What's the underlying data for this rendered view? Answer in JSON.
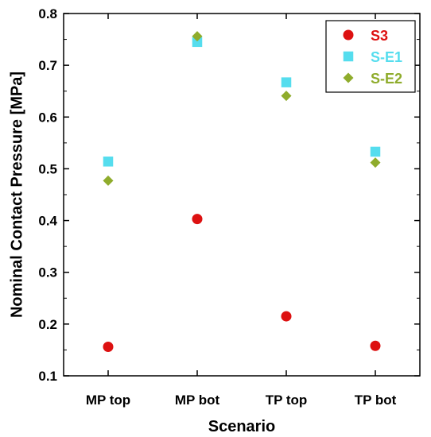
{
  "chart_data": {
    "type": "scatter",
    "title": "",
    "xlabel": "Scenario",
    "ylabel": "Nominal Contact Pressure [MPa]",
    "categories": [
      "MP top",
      "MP bot",
      "TP top",
      "TP bot"
    ],
    "ylim": [
      0.1,
      0.8
    ],
    "yticks": [
      "0.1",
      "0.2",
      "0.3",
      "0.4",
      "0.5",
      "0.6",
      "0.7",
      "0.8"
    ],
    "grid": false,
    "legend_position": "top-right",
    "series": [
      {
        "name": "S3",
        "marker": "circle",
        "color": "#dd1111",
        "values": [
          0.156,
          0.403,
          0.215,
          0.158
        ]
      },
      {
        "name": "S-E1",
        "marker": "square",
        "color": "#55ddee",
        "values": [
          0.514,
          0.745,
          0.667,
          0.533
        ]
      },
      {
        "name": "S-E2",
        "marker": "diamond",
        "color": "#8fac2c",
        "values": [
          0.477,
          0.756,
          0.641,
          0.512
        ]
      }
    ]
  }
}
